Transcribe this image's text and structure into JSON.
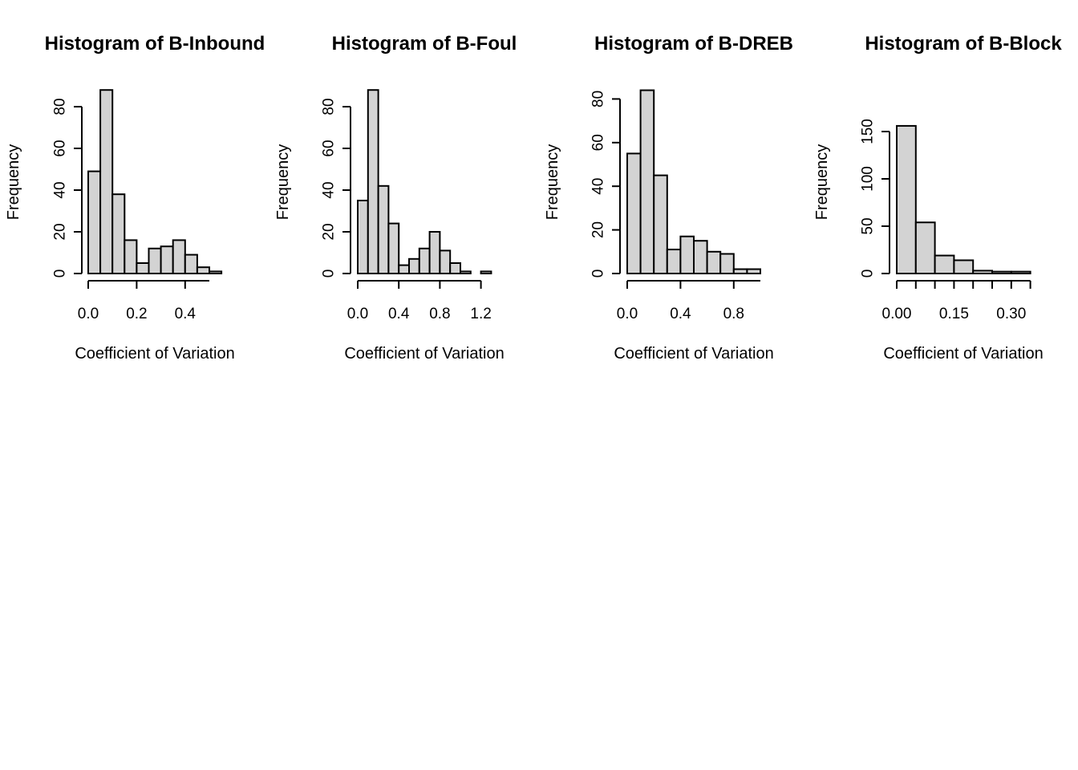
{
  "chart_data": [
    {
      "type": "bar",
      "title": "Histogram of B-Inbound",
      "xlabel": "Coefficient of Variation",
      "ylabel": "Frequency",
      "bin_edges": [
        0.0,
        0.05,
        0.1,
        0.15,
        0.2,
        0.25,
        0.3,
        0.35,
        0.4,
        0.45,
        0.5,
        0.55
      ],
      "values": [
        49,
        88,
        38,
        16,
        5,
        12,
        13,
        16,
        9,
        3,
        1
      ],
      "xticks": [
        0.0,
        0.2,
        0.4
      ],
      "xtick_labels": [
        "0.0",
        "0.2",
        "0.4"
      ],
      "xaxis_range": [
        0.0,
        0.5
      ],
      "yticks": [
        0,
        20,
        40,
        60,
        80
      ],
      "ytick_labels": [
        "0",
        "20",
        "40",
        "60",
        "80"
      ],
      "bar_color": "#d3d3d3"
    },
    {
      "type": "bar",
      "title": "Histogram of B-Foul",
      "xlabel": "Coefficient of Variation",
      "ylabel": "Frequency",
      "bin_edges": [
        0.0,
        0.1,
        0.2,
        0.3,
        0.4,
        0.5,
        0.6,
        0.7,
        0.8,
        0.9,
        1.0,
        1.1,
        1.2,
        1.3
      ],
      "values": [
        35,
        88,
        42,
        24,
        4,
        7,
        12,
        20,
        11,
        5,
        1,
        0,
        1
      ],
      "xticks": [
        0.0,
        0.4,
        0.8,
        1.2
      ],
      "xtick_labels": [
        "0.0",
        "0.4",
        "0.8",
        "1.2"
      ],
      "xaxis_range": [
        0.0,
        1.2
      ],
      "yticks": [
        0,
        20,
        40,
        60,
        80
      ],
      "ytick_labels": [
        "0",
        "20",
        "40",
        "60",
        "80"
      ],
      "bar_color": "#d3d3d3"
    },
    {
      "type": "bar",
      "title": "Histogram of B-DREB",
      "xlabel": "Coefficient of Variation",
      "ylabel": "Frequency",
      "bin_edges": [
        0.0,
        0.1,
        0.2,
        0.3,
        0.4,
        0.5,
        0.6,
        0.7,
        0.8,
        0.9,
        1.0
      ],
      "values": [
        55,
        84,
        45,
        11,
        17,
        15,
        10,
        9,
        2,
        2
      ],
      "xticks": [
        0.0,
        0.4,
        0.8
      ],
      "xtick_labels": [
        "0.0",
        "0.4",
        "0.8"
      ],
      "xaxis_range": [
        0.0,
        1.0
      ],
      "yticks": [
        0,
        20,
        40,
        60,
        80
      ],
      "ytick_labels": [
        "0",
        "20",
        "40",
        "60",
        "80"
      ],
      "bar_color": "#d3d3d3"
    },
    {
      "type": "bar",
      "title": "Histogram of B-Block",
      "xlabel": "Coefficient of Variation",
      "ylabel": "Frequency",
      "bin_edges": [
        0.0,
        0.05,
        0.1,
        0.15,
        0.2,
        0.25,
        0.3,
        0.35
      ],
      "values": [
        156,
        54,
        19,
        14,
        3,
        2,
        2
      ],
      "xticks": [
        0.0,
        0.05,
        0.1,
        0.15,
        0.2,
        0.25,
        0.3,
        0.35
      ],
      "xtick_labels": [
        "0.00",
        "",
        "",
        "0.15",
        "",
        "",
        "0.30",
        ""
      ],
      "xaxis_range": [
        0.0,
        0.35
      ],
      "yticks": [
        0,
        50,
        100,
        150
      ],
      "ytick_labels": [
        "0",
        "50",
        "100",
        "150"
      ],
      "bar_color": "#d3d3d3"
    }
  ]
}
